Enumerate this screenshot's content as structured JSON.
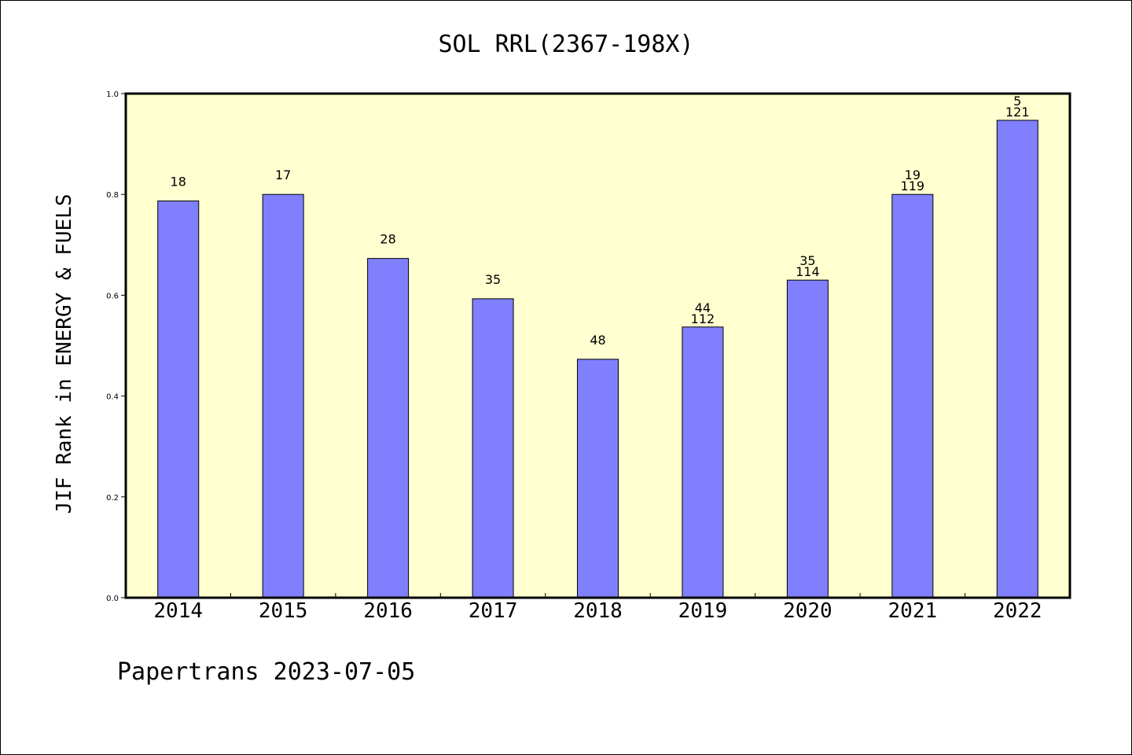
{
  "chart_data": {
    "type": "bar",
    "title": "SOL RRL(2367-198X)",
    "xlabel": "",
    "ylabel": "JIF Rank in ENERGY & FUELS",
    "ylim": [
      0,
      1.0
    ],
    "yticks": [
      "0.0",
      "0.2",
      "0.4",
      "0.6",
      "0.8",
      "1.0"
    ],
    "categories": [
      "2014",
      "2015",
      "2016",
      "2017",
      "2018",
      "2019",
      "2020",
      "2021",
      "2022"
    ],
    "values": [
      0.787,
      0.8,
      0.673,
      0.593,
      0.473,
      0.537,
      0.63,
      0.8,
      0.947
    ],
    "labels_top": [
      "18",
      "17",
      "28",
      "35",
      "48",
      "44",
      "35",
      "19",
      "5"
    ],
    "labels_bottom": [
      "",
      "",
      "",
      "",
      "",
      "112",
      "114",
      "119",
      "121"
    ],
    "grid": false,
    "legend": "none"
  },
  "footer": "Papertrans 2023-07-05",
  "colors": {
    "plot_background": "#ffffd0",
    "bar_fill": "#8080ff",
    "bar_stroke": "#000000"
  }
}
